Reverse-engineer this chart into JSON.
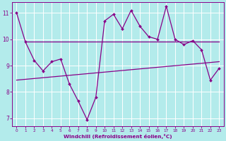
{
  "xlabel": "Windchill (Refroidissement éolien,°C)",
  "bg_color": "#b3ebeb",
  "line_color": "#880088",
  "grid_color": "#ffffff",
  "xlim": [
    -0.5,
    23.5
  ],
  "ylim": [
    6.7,
    11.4
  ],
  "xticks": [
    0,
    1,
    2,
    3,
    4,
    5,
    6,
    7,
    8,
    9,
    10,
    11,
    12,
    13,
    14,
    15,
    16,
    17,
    18,
    19,
    20,
    21,
    22,
    23
  ],
  "yticks": [
    7,
    8,
    9,
    10,
    11
  ],
  "hours": [
    0,
    1,
    2,
    3,
    4,
    5,
    6,
    7,
    8,
    9,
    10,
    11,
    12,
    13,
    14,
    15,
    16,
    17,
    18,
    19,
    20,
    21,
    22,
    23
  ],
  "windchill": [
    11.0,
    9.9,
    9.2,
    8.8,
    9.15,
    9.25,
    8.3,
    7.65,
    6.95,
    7.8,
    10.7,
    10.95,
    10.4,
    11.1,
    10.5,
    10.1,
    10.0,
    11.25,
    10.0,
    9.8,
    9.95,
    9.6,
    8.45,
    8.9
  ],
  "flat_y_start": 9.9,
  "flat_x_start": 1,
  "flat_x_end": 23,
  "trend_x": [
    0,
    23
  ],
  "trend_y": [
    8.45,
    9.15
  ]
}
